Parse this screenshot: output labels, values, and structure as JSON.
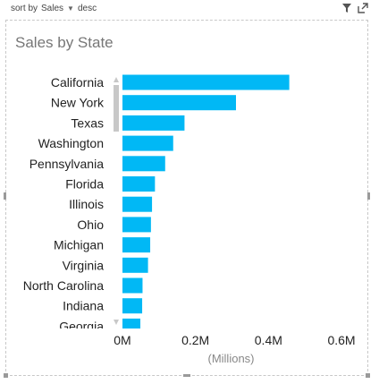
{
  "header": {
    "sort_by_label": "sort by",
    "sort_field": "Sales",
    "sort_order": "desc",
    "icons": [
      "filter-icon",
      "focus-mode-icon"
    ]
  },
  "chart_data": {
    "type": "bar",
    "orientation": "horizontal",
    "title": "Sales by State",
    "categories": [
      "California",
      "New York",
      "Texas",
      "Washington",
      "Pennsylvania",
      "Florida",
      "Illinois",
      "Ohio",
      "Michigan",
      "Virginia",
      "North Carolina",
      "Indiana",
      "Georgia"
    ],
    "values": [
      0.457,
      0.311,
      0.17,
      0.139,
      0.117,
      0.089,
      0.081,
      0.078,
      0.076,
      0.07,
      0.055,
      0.054,
      0.049
    ],
    "xlim": [
      0,
      0.6
    ],
    "x_ticks": [
      0,
      0.2,
      0.4,
      0.6
    ],
    "x_tick_labels": [
      "0M",
      "0.2M",
      "0.4M",
      "0.6M"
    ],
    "xlabel": "(Millions)",
    "ylabel": "",
    "bar_color": "#01b8f5",
    "grid": false,
    "legend": false
  }
}
